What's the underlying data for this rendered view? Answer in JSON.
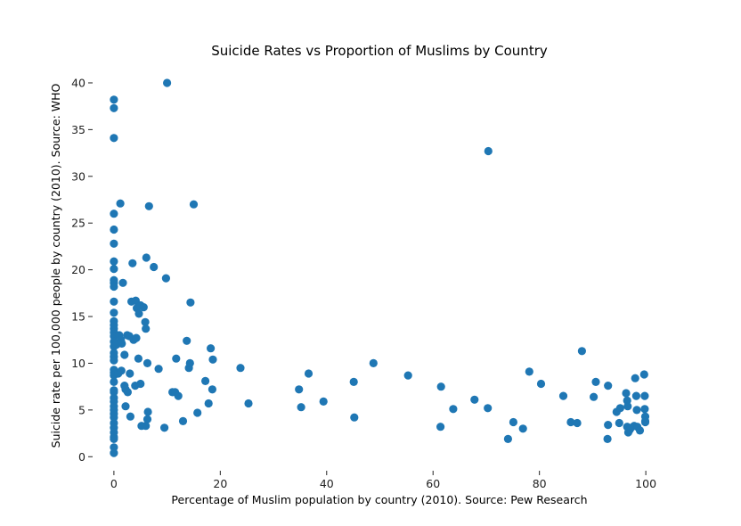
{
  "chart_data": {
    "type": "scatter",
    "title": "Suicide Rates vs Proportion of Muslims by Country",
    "xlabel": "Percentage of Muslim population by country (2010). Source: Pew Research",
    "ylabel": "Suicide rate per 100,000 people by country (2010). Source: WHO",
    "xlim": [
      -4,
      104
    ],
    "ylim": [
      -1.5,
      42
    ],
    "xticks": [
      0,
      20,
      40,
      60,
      80,
      100
    ],
    "yticks": [
      0,
      5,
      10,
      15,
      20,
      25,
      30,
      35,
      40
    ],
    "grid": false,
    "color": "#1f77b4",
    "points": [
      [
        0,
        38.2
      ],
      [
        0,
        37.3
      ],
      [
        0,
        34.1
      ],
      [
        0,
        26.0
      ],
      [
        0,
        24.3
      ],
      [
        0,
        22.8
      ],
      [
        0,
        20.9
      ],
      [
        0,
        20.1
      ],
      [
        0,
        18.9
      ],
      [
        0,
        18.6
      ],
      [
        0,
        18.2
      ],
      [
        0,
        16.6
      ],
      [
        0,
        15.4
      ],
      [
        0,
        14.5
      ],
      [
        0,
        14.1
      ],
      [
        0,
        13.7
      ],
      [
        0,
        13.3
      ],
      [
        0,
        12.9
      ],
      [
        0,
        12.3
      ],
      [
        0,
        11.8
      ],
      [
        0,
        11.1
      ],
      [
        0,
        10.7
      ],
      [
        0,
        10.3
      ],
      [
        0,
        9.3
      ],
      [
        0,
        9.0
      ],
      [
        0,
        8.7
      ],
      [
        0,
        8.0
      ],
      [
        0,
        7.1
      ],
      [
        0,
        6.9
      ],
      [
        0,
        6.3
      ],
      [
        0,
        5.9
      ],
      [
        0,
        5.4
      ],
      [
        0,
        5.0
      ],
      [
        0,
        4.6
      ],
      [
        0,
        4.2
      ],
      [
        0,
        3.6
      ],
      [
        0,
        3.1
      ],
      [
        0,
        2.6
      ],
      [
        0,
        2.1
      ],
      [
        0,
        1.9
      ],
      [
        0,
        1.0
      ],
      [
        0,
        0.4
      ],
      [
        0.5,
        12.0
      ],
      [
        0.8,
        8.9
      ],
      [
        1.0,
        13.0
      ],
      [
        1.2,
        27.1
      ],
      [
        1.3,
        12.5
      ],
      [
        1.4,
        9.2
      ],
      [
        1.5,
        12.1
      ],
      [
        1.7,
        18.6
      ],
      [
        2.0,
        10.9
      ],
      [
        2.0,
        7.6
      ],
      [
        2.2,
        7.2
      ],
      [
        2.2,
        5.4
      ],
      [
        2.5,
        13.0
      ],
      [
        2.6,
        6.9
      ],
      [
        2.9,
        12.9
      ],
      [
        3.0,
        8.9
      ],
      [
        3.1,
        4.3
      ],
      [
        3.3,
        16.6
      ],
      [
        3.5,
        20.7
      ],
      [
        3.7,
        12.5
      ],
      [
        4.0,
        7.6
      ],
      [
        4.1,
        16.7
      ],
      [
        4.2,
        12.7
      ],
      [
        4.3,
        15.9
      ],
      [
        4.6,
        10.5
      ],
      [
        4.7,
        15.3
      ],
      [
        5.0,
        16.2
      ],
      [
        5.0,
        7.8
      ],
      [
        5.2,
        3.3
      ],
      [
        5.6,
        16.0
      ],
      [
        5.9,
        14.4
      ],
      [
        6.0,
        3.3
      ],
      [
        6.0,
        13.7
      ],
      [
        6.1,
        21.3
      ],
      [
        6.3,
        4.0
      ],
      [
        6.3,
        10.0
      ],
      [
        6.4,
        4.8
      ],
      [
        6.6,
        26.8
      ],
      [
        7.5,
        20.3
      ],
      [
        8.4,
        9.4
      ],
      [
        9.5,
        3.1
      ],
      [
        9.8,
        19.1
      ],
      [
        10.0,
        40.0
      ],
      [
        11.0,
        6.9
      ],
      [
        11.5,
        6.9
      ],
      [
        11.7,
        10.5
      ],
      [
        12.1,
        6.5
      ],
      [
        13.0,
        3.8
      ],
      [
        13.7,
        12.4
      ],
      [
        14.1,
        9.5
      ],
      [
        14.3,
        10.0
      ],
      [
        14.4,
        16.5
      ],
      [
        15.0,
        27.0
      ],
      [
        15.7,
        4.7
      ],
      [
        17.2,
        8.1
      ],
      [
        17.8,
        5.7
      ],
      [
        18.2,
        11.6
      ],
      [
        18.5,
        7.2
      ],
      [
        18.6,
        10.4
      ],
      [
        23.8,
        9.5
      ],
      [
        25.3,
        5.7
      ],
      [
        34.8,
        7.2
      ],
      [
        35.2,
        5.3
      ],
      [
        36.6,
        8.9
      ],
      [
        39.4,
        5.9
      ],
      [
        45.1,
        8.0
      ],
      [
        45.2,
        4.2
      ],
      [
        48.8,
        10.0
      ],
      [
        55.3,
        8.7
      ],
      [
        61.4,
        3.2
      ],
      [
        61.5,
        7.5
      ],
      [
        63.8,
        5.1
      ],
      [
        67.8,
        6.1
      ],
      [
        70.3,
        5.2
      ],
      [
        70.4,
        32.7
      ],
      [
        74.1,
        1.9
      ],
      [
        75.1,
        3.7
      ],
      [
        76.9,
        3.0
      ],
      [
        78.1,
        9.1
      ],
      [
        80.3,
        7.8
      ],
      [
        84.5,
        6.5
      ],
      [
        85.9,
        3.7
      ],
      [
        87.1,
        3.6
      ],
      [
        88.0,
        11.3
      ],
      [
        90.2,
        6.4
      ],
      [
        90.6,
        8.0
      ],
      [
        92.8,
        1.9
      ],
      [
        92.9,
        3.4
      ],
      [
        92.9,
        7.6
      ],
      [
        94.5,
        4.8
      ],
      [
        95.0,
        3.6
      ],
      [
        95.2,
        5.2
      ],
      [
        96.3,
        6.8
      ],
      [
        96.5,
        3.2
      ],
      [
        96.5,
        6.0
      ],
      [
        96.6,
        5.4
      ],
      [
        96.7,
        2.6
      ],
      [
        97.0,
        2.9
      ],
      [
        97.2,
        3.1
      ],
      [
        97.8,
        3.3
      ],
      [
        98.0,
        8.4
      ],
      [
        98.2,
        6.5
      ],
      [
        98.3,
        5.0
      ],
      [
        98.4,
        3.2
      ],
      [
        98.9,
        2.8
      ],
      [
        99.7,
        8.8
      ],
      [
        99.8,
        6.5
      ],
      [
        99.8,
        5.1
      ],
      [
        99.9,
        4.3
      ],
      [
        99.9,
        3.7
      ],
      [
        99.9,
        3.8
      ]
    ]
  }
}
